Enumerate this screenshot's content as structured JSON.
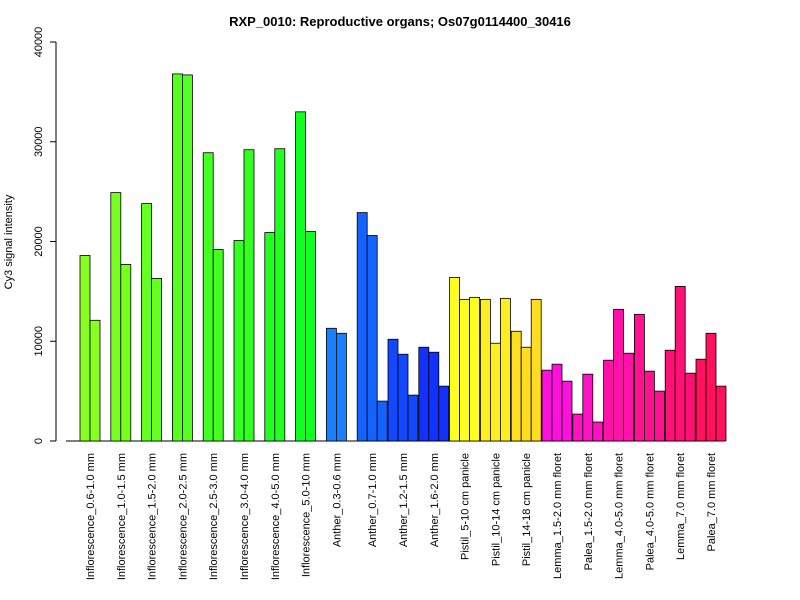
{
  "chart_data": {
    "type": "bar",
    "title": "RXP_0010: Reproductive organs; Os07g0114400_30416",
    "ylabel": "Cy3 signal intensity",
    "xlabel": "",
    "ylim": [
      0,
      40000
    ],
    "yticks": [
      0,
      10000,
      20000,
      30000,
      40000
    ],
    "grid": false,
    "legend": "none",
    "categories": [
      "Inflorescence_0.6-1.0 mm",
      "Inflorescence_1.0-1.5 mm",
      "Inflorescence_1.5-2.0 mm",
      "Inflorescence_2.0-2.5 mm",
      "Inflorescence_2.5-3.0 mm",
      "Inflorescence_3.0-4.0 mm",
      "Inflorescence_4.0-5.0 mm",
      "Inflorescence_5.0-10 mm",
      "Anther_0.3-0.6 mm",
      "Anther_0.7-1.0 mm",
      "Anther_1.2-1.5 mm",
      "Anther_1.6-2.0 mm",
      "Pistil_5-10 cm panicle",
      "Pistil_10-14 cm panicle",
      "Pistil_14-18 cm panicle",
      "Lemma_1.5-2.0 mm floret",
      "Palea_1.5-2.0 mm floret",
      "Lemma_4.0-5.0 mm floret",
      "Palea_4.0-5.0 mm floret",
      "Lemma_7.0 mm floret",
      "Palea_7.0 mm floret"
    ],
    "groups": [
      {
        "values": [
          18600,
          12100
        ],
        "color": "#88ff22"
      },
      {
        "values": [
          24900,
          17700
        ],
        "color": "#77ff22"
      },
      {
        "values": [
          23800,
          16300
        ],
        "color": "#66ff22"
      },
      {
        "values": [
          36800,
          36700
        ],
        "color": "#55ff22"
      },
      {
        "values": [
          28900,
          19200
        ],
        "color": "#44ff22"
      },
      {
        "values": [
          20100,
          29200
        ],
        "color": "#33ff22"
      },
      {
        "values": [
          20900,
          29300
        ],
        "color": "#22ff22"
      },
      {
        "values": [
          33000,
          21000
        ],
        "color": "#11ff22"
      },
      {
        "values": [
          11300,
          10800
        ],
        "color": "#1a7fff"
      },
      {
        "values": [
          22900,
          20600,
          4000
        ],
        "color": "#1563ff"
      },
      {
        "values": [
          10200,
          8700,
          4600
        ],
        "color": "#1448ff"
      },
      {
        "values": [
          9400,
          8900,
          5500
        ],
        "color": "#1230ff"
      },
      {
        "values": [
          16400,
          14200,
          14400
        ],
        "color": "#ffff22"
      },
      {
        "values": [
          14200,
          9800,
          14300
        ],
        "color": "#ffee22"
      },
      {
        "values": [
          11000,
          9400,
          14200
        ],
        "color": "#ffdd22"
      },
      {
        "values": [
          7100,
          7700,
          6000
        ],
        "color": "#ff11dd"
      },
      {
        "values": [
          2700,
          6700,
          1900
        ],
        "color": "#ff11c4"
      },
      {
        "values": [
          8100,
          13200,
          8800
        ],
        "color": "#ff11aa"
      },
      {
        "values": [
          12700,
          7000,
          5000
        ],
        "color": "#ff1190"
      },
      {
        "values": [
          9100,
          15500,
          6800
        ],
        "color": "#ff1176"
      },
      {
        "values": [
          8200,
          10800,
          5500
        ],
        "color": "#ff115c"
      }
    ]
  }
}
